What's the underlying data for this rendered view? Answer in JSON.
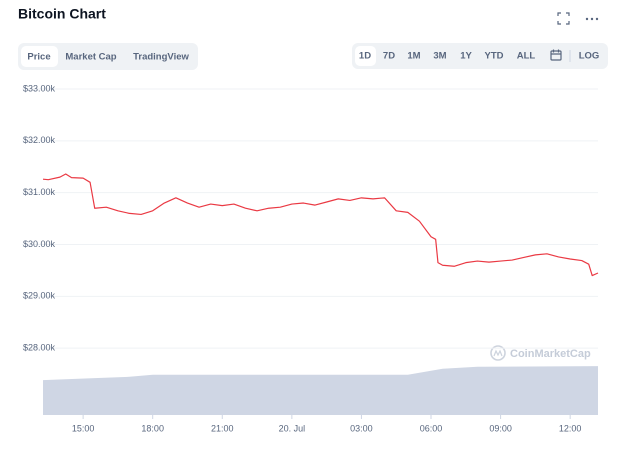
{
  "chart_data": {
    "type": "line",
    "title": "Bitcoin Chart",
    "toolbar": {
      "tabs": [
        "Price",
        "Market Cap",
        "TradingView"
      ],
      "ranges": [
        "1D",
        "7D",
        "1M",
        "3M",
        "1Y",
        "YTD",
        "ALL"
      ],
      "log": "LOG"
    },
    "watermark": "CoinMarketCap",
    "series": [
      {
        "color": "#ea3943",
        "x": [
          13.27,
          13.5,
          14.0,
          14.25,
          14.5,
          15.0,
          15.3,
          15.5,
          16.0,
          16.5,
          17.0,
          17.5,
          18.0,
          18.5,
          19.0,
          19.5,
          20.0,
          20.5,
          21.0,
          21.5,
          22.0,
          22.5,
          23.0,
          23.5,
          24.0,
          24.5,
          25.0,
          25.5,
          26.0,
          26.5,
          27.0,
          27.5,
          28.0,
          28.5,
          29.0,
          29.5,
          30.0,
          30.2,
          30.3,
          30.5,
          31.0,
          31.5,
          32.0,
          32.5,
          33.0,
          33.5,
          34.0,
          34.5,
          35.0,
          35.5,
          36.0,
          36.5,
          36.8,
          36.95,
          37.2
        ],
        "values": [
          31260,
          31250,
          31300,
          31360,
          31290,
          31280,
          31200,
          30700,
          30720,
          30650,
          30600,
          30580,
          30650,
          30800,
          30900,
          30800,
          30720,
          30780,
          30750,
          30780,
          30700,
          30650,
          30700,
          30720,
          30780,
          30800,
          30760,
          30820,
          30880,
          30850,
          30900,
          30880,
          30900,
          30650,
          30620,
          30450,
          30150,
          30100,
          29650,
          29600,
          29580,
          29650,
          29680,
          29660,
          29680,
          29700,
          29750,
          29800,
          29820,
          29760,
          29720,
          29690,
          29620,
          29400,
          29450
        ]
      },
      {
        "color": "#cfd6e4",
        "axis": "y2",
        "x": [
          13.27,
          15.5,
          17.0,
          18.0,
          27.0,
          29.0,
          30.5,
          32.0,
          37.2
        ],
        "values": [
          5.2,
          5.5,
          5.7,
          6.0,
          6.0,
          6.0,
          6.9,
          7.2,
          7.3
        ]
      }
    ],
    "xlim": [
      13.27,
      37.2
    ],
    "xticks": [
      {
        "value": 15,
        "label": "15:00"
      },
      {
        "value": 18,
        "label": "18:00"
      },
      {
        "value": 21,
        "label": "21:00"
      },
      {
        "value": 24,
        "label": "20. Jul"
      },
      {
        "value": 27,
        "label": "03:00"
      },
      {
        "value": 30,
        "label": "06:00"
      },
      {
        "value": 33,
        "label": "09:00"
      },
      {
        "value": 36,
        "label": "12:00"
      }
    ],
    "ylim": [
      27000,
      33000
    ],
    "yticks": [
      {
        "value": 28000,
        "label": "$28.00k"
      },
      {
        "value": 29000,
        "label": "$29.00k"
      },
      {
        "value": 30000,
        "label": "$30.00k"
      },
      {
        "value": 31000,
        "label": "$31.00k"
      },
      {
        "value": 32000,
        "label": "$32.00k"
      },
      {
        "value": 33000,
        "label": "$33.00k"
      }
    ],
    "y2lim": [
      0,
      10
    ],
    "grid": true
  }
}
